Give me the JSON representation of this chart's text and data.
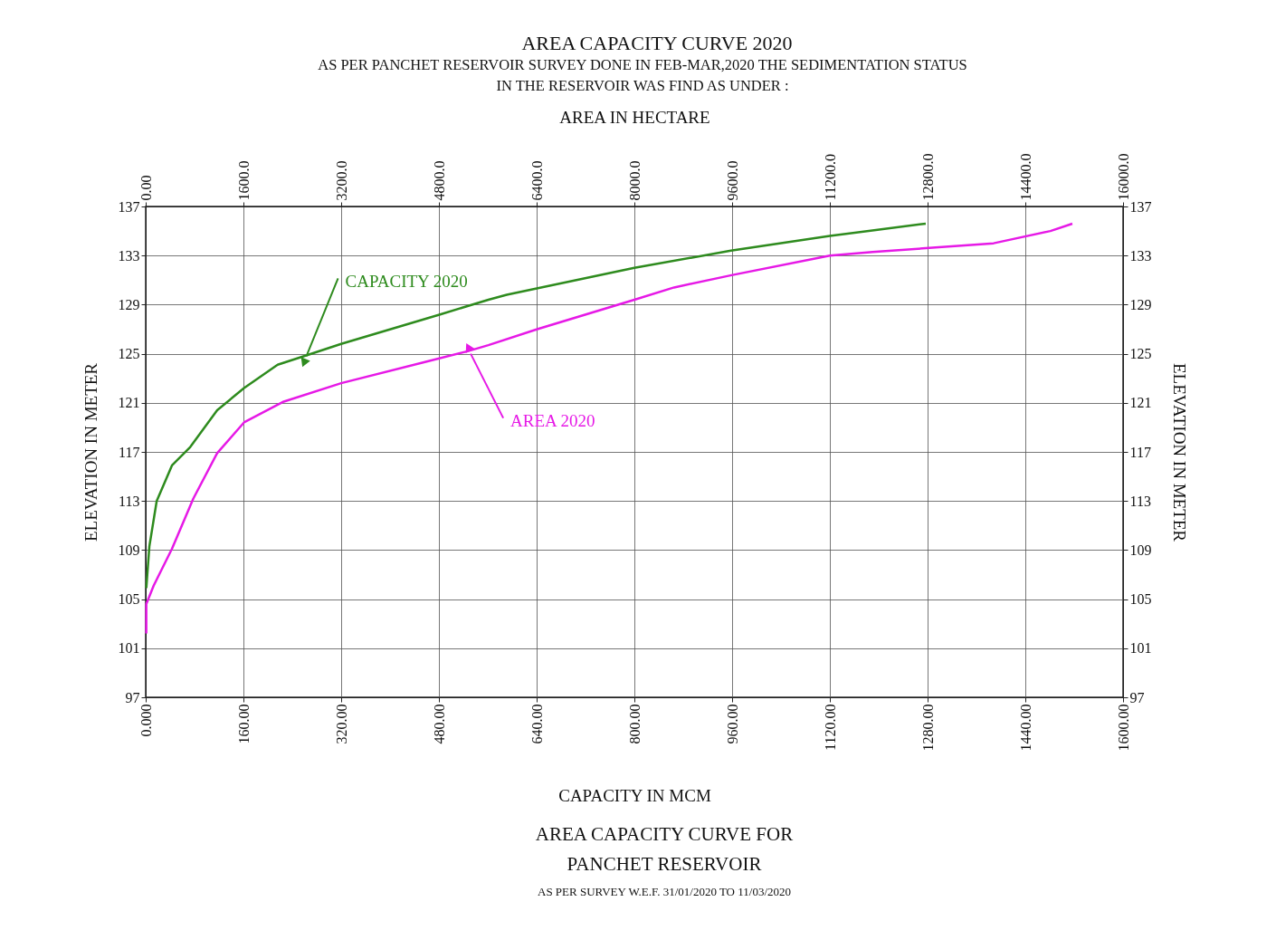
{
  "chart_data": {
    "type": "line",
    "title": "AREA CAPACITY CURVE 2020",
    "subtitle": "AS PER PANCHET RESERVOIR SURVEY DONE IN FEB-MAR,2020 THE SEDIMENTATION STATUS\nIN THE RESERVOIR WAS FIND AS UNDER :",
    "xlabel": "CAPACITY  IN  MCM",
    "x2label": "AREA IN HECTARE",
    "ylabel": "ELEVATION  IN   METER",
    "y2label": "ELEVATION  IN   METER",
    "xlim": [
      0,
      1600
    ],
    "xticks": [
      {
        "value": 0,
        "label": "0.000"
      },
      {
        "value": 160,
        "label": "160.00"
      },
      {
        "value": 320,
        "label": "320.00"
      },
      {
        "value": 480,
        "label": "480.00"
      },
      {
        "value": 640,
        "label": "640.00"
      },
      {
        "value": 800,
        "label": "800.00"
      },
      {
        "value": 960,
        "label": "960.00"
      },
      {
        "value": 1120,
        "label": "1120.00"
      },
      {
        "value": 1280,
        "label": "1280.00"
      },
      {
        "value": 1440,
        "label": "1440.00"
      },
      {
        "value": 1600,
        "label": "1600.00"
      }
    ],
    "x2lim": [
      0,
      16000
    ],
    "x2ticks": [
      {
        "value": 0,
        "label": "0.00"
      },
      {
        "value": 1600,
        "label": "1600.0"
      },
      {
        "value": 3200,
        "label": "3200.0"
      },
      {
        "value": 4800,
        "label": "4800.0"
      },
      {
        "value": 6400,
        "label": "6400.0"
      },
      {
        "value": 8000,
        "label": "8000.0"
      },
      {
        "value": 9600,
        "label": "9600.0"
      },
      {
        "value": 11200,
        "label": "11200.0"
      },
      {
        "value": 12800,
        "label": "12800.0"
      },
      {
        "value": 14400,
        "label": "14400.0"
      },
      {
        "value": 16000,
        "label": "16000.0"
      }
    ],
    "ylim": [
      97,
      137
    ],
    "yticks": [
      97,
      101,
      105,
      109,
      113,
      117,
      121,
      125,
      129,
      133,
      137
    ],
    "y2lim": [
      97,
      137
    ],
    "y2ticks": [
      97,
      101,
      105,
      109,
      113,
      117,
      121,
      125,
      129,
      133,
      137
    ],
    "grid": true,
    "marker": "none",
    "line_style": "solid",
    "series": [
      {
        "color": "#2e8b1e",
        "x": [
          1,
          6,
          18,
          43,
          73,
          117,
          161,
          216,
          265,
          320,
          482,
          561,
          591,
          800,
          958,
          1120,
          1277
        ],
        "values": [
          105.9,
          109.3,
          113.0,
          115.9,
          117.4,
          120.4,
          122.2,
          124.1,
          124.9,
          125.8,
          128.2,
          129.4,
          129.8,
          132.0,
          133.4,
          134.6,
          135.6
        ]
      },
      {
        "color": "#e619e6",
        "axis": "x2",
        "x": [
          10,
          10,
          130,
          430,
          780,
          1170,
          1610,
          2260,
          3200,
          4630,
          5270,
          5610,
          6410,
          8000,
          8650,
          9590,
          11200,
          11900,
          12770,
          13880,
          14810,
          15170
        ],
        "values": [
          102.2,
          104.6,
          106.1,
          109.1,
          113.2,
          116.9,
          119.4,
          121.1,
          122.6,
          124.4,
          125.2,
          125.7,
          127.0,
          129.4,
          130.4,
          131.4,
          133.0,
          133.3,
          133.6,
          134.0,
          135.0,
          135.6
        ]
      }
    ],
    "annotations": [
      {
        "text": "CAPACITY 2020",
        "x": 263,
        "y": 124.8
      },
      {
        "text": "AREA 2020",
        "x": 532,
        "y": 125.0
      },
      "AREA  CAPACITY CURVE FOR",
      "PANCHET RESERVOIR",
      "AS PER SURVEY W.E.F.  31/01/2020 TO 11/03/2020"
    ]
  }
}
